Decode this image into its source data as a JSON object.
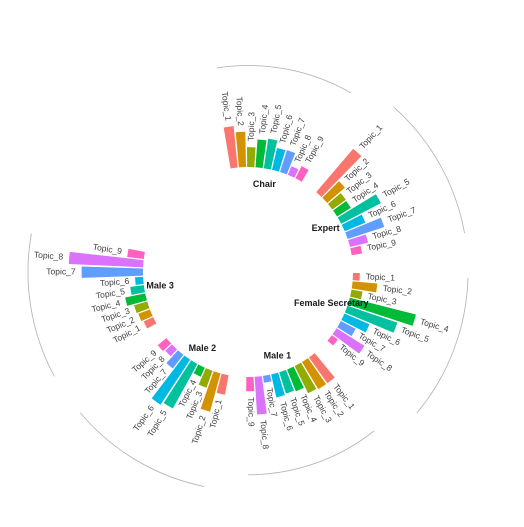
{
  "chart_data": {
    "type": "bar",
    "layout": "circular",
    "colors": {
      "Topic_1": "#f8766d",
      "Topic_2": "#d39200",
      "Topic_3": "#93aa00",
      "Topic_4": "#00ba38",
      "Topic_5": "#00c19f",
      "Topic_6": "#00b9e3",
      "Topic_7": "#619cff",
      "Topic_8": "#db72fb",
      "Topic_9": "#ff61c3"
    },
    "groups": [
      {
        "name": "Chair",
        "topics": [
          "Topic_1",
          "Topic_2",
          "Topic_3",
          "Topic_4",
          "Topic_5",
          "Topic_6",
          "Topic_7",
          "Topic_8",
          "Topic_9"
        ],
        "values": [
          67,
          57,
          32,
          45,
          48,
          36,
          37,
          15,
          22
        ]
      },
      {
        "name": "Expert",
        "topics": [
          "Topic_1",
          "Topic_2",
          "Topic_3",
          "Topic_4",
          "Topic_5",
          "Topic_6",
          "Topic_7",
          "Topic_8",
          "Topic_9"
        ],
        "values": [
          92,
          38,
          27,
          26,
          72,
          36,
          62,
          30,
          17
        ]
      },
      {
        "name": "Female Secretary",
        "topics": [
          "Topic_1",
          "Topic_2",
          "Topic_3",
          "Topic_4",
          "Topic_5",
          "Topic_6",
          "Topic_7",
          "Topic_8",
          "Topic_9"
        ],
        "values": [
          11,
          40,
          18,
          110,
          85,
          44,
          27,
          53,
          12
        ]
      },
      {
        "name": "Male 1",
        "topics": [
          "Topic_1",
          "Topic_2",
          "Topic_3",
          "Topic_4",
          "Topic_5",
          "Topic_6",
          "Topic_7",
          "Topic_8",
          "Topic_9"
        ],
        "values": [
          51,
          51,
          49,
          38,
          36,
          38,
          11,
          61,
          23
        ]
      },
      {
        "name": "Male 2",
        "topics": [
          "Topic_1",
          "Topic_2",
          "Topic_3",
          "Topic_4",
          "Topic_5",
          "Topic_6",
          "Topic_7",
          "Topic_8",
          "Topic_9"
        ],
        "values": [
          32,
          64,
          29,
          16,
          82,
          87,
          28,
          15,
          18
        ]
      },
      {
        "name": "Male 3",
        "topics": [
          "Topic_1",
          "Topic_2",
          "Topic_3",
          "Topic_4",
          "Topic_5",
          "Topic_6",
          "Topic_7",
          "Topic_8",
          "Topic_9"
        ],
        "values": [
          17,
          20,
          22,
          33,
          22,
          13,
          99,
          120,
          27
        ]
      }
    ]
  }
}
